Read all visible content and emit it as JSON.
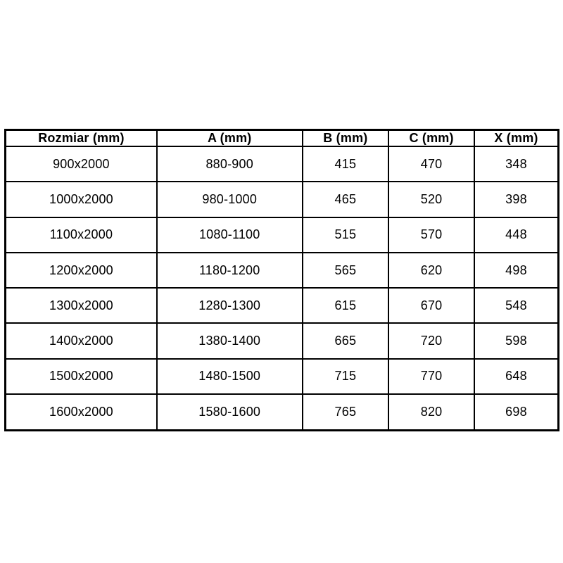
{
  "chart_data": {
    "type": "table",
    "title": "",
    "columns": [
      "Rozmiar (mm)",
      "A (mm)",
      "B (mm)",
      "C (mm)",
      "X (mm)"
    ],
    "rows": [
      [
        "900x2000",
        "880-900",
        "415",
        "470",
        "348"
      ],
      [
        "1000x2000",
        "980-1000",
        "465",
        "520",
        "398"
      ],
      [
        "1100x2000",
        "1080-1100",
        "515",
        "570",
        "448"
      ],
      [
        "1200x2000",
        "1180-1200",
        "565",
        "620",
        "498"
      ],
      [
        "1300x2000",
        "1280-1300",
        "615",
        "670",
        "548"
      ],
      [
        "1400x2000",
        "1380-1400",
        "665",
        "720",
        "598"
      ],
      [
        "1500x2000",
        "1480-1500",
        "715",
        "770",
        "648"
      ],
      [
        "1600x2000",
        "1580-1600",
        "765",
        "820",
        "698"
      ]
    ]
  },
  "style": {
    "border_color": "#000000",
    "text_color": "#000000",
    "background_color": "#ffffff"
  }
}
